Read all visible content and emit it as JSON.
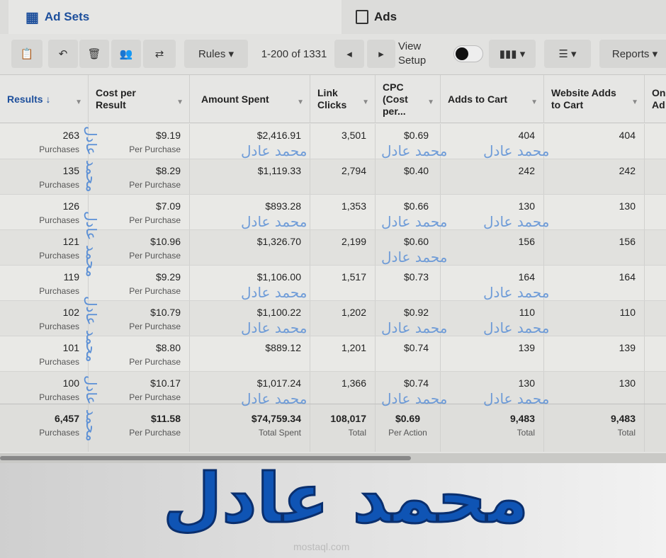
{
  "tabs": [
    {
      "label": "Ad Sets",
      "icon": "grid-icon",
      "active": true
    },
    {
      "label": "Ads",
      "icon": "ad-page-icon",
      "active": false
    }
  ],
  "toolbar": {
    "rules": "Rules",
    "pagination": "1-200 of 1331",
    "view_setup": "View Setup",
    "reports": "Reports"
  },
  "columns": [
    "Results ↓",
    "Cost per Result",
    "Amount Spent",
    "Link Clicks",
    "CPC (Cost per...",
    "Adds to Cart",
    "Website Adds to Cart",
    "On-Ad"
  ],
  "rows": [
    {
      "results": "263",
      "results_sub": "Purchases",
      "cpr": "$9.19",
      "cpr_sub": "Per Purchase",
      "spent": "$2,416.91",
      "clicks": "3,501",
      "cpc": "$0.69",
      "atc": "404",
      "watc": "404"
    },
    {
      "results": "135",
      "results_sub": "Purchases",
      "cpr": "$8.29",
      "cpr_sub": "Per Purchase",
      "spent": "$1,119.33",
      "clicks": "2,794",
      "cpc": "$0.40",
      "atc": "242",
      "watc": "242"
    },
    {
      "results": "126",
      "results_sub": "Purchases",
      "cpr": "$7.09",
      "cpr_sub": "Per Purchase",
      "spent": "$893.28",
      "clicks": "1,353",
      "cpc": "$0.66",
      "atc": "130",
      "watc": "130"
    },
    {
      "results": "121",
      "results_sub": "Purchases",
      "cpr": "$10.96",
      "cpr_sub": "Per Purchase",
      "spent": "$1,326.70",
      "clicks": "2,199",
      "cpc": "$0.60",
      "atc": "156",
      "watc": "156"
    },
    {
      "results": "119",
      "results_sub": "Purchases",
      "cpr": "$9.29",
      "cpr_sub": "Per Purchase",
      "spent": "$1,106.00",
      "clicks": "1,517",
      "cpc": "$0.73",
      "atc": "164",
      "watc": "164"
    },
    {
      "results": "102",
      "results_sub": "Purchases",
      "cpr": "$10.79",
      "cpr_sub": "Per Purchase",
      "spent": "$1,100.22",
      "clicks": "1,202",
      "cpc": "$0.92",
      "atc": "110",
      "watc": "110"
    },
    {
      "results": "101",
      "results_sub": "Purchases",
      "cpr": "$8.80",
      "cpr_sub": "Per Purchase",
      "spent": "$889.12",
      "clicks": "1,201",
      "cpc": "$0.74",
      "atc": "139",
      "watc": "139"
    },
    {
      "results": "100",
      "results_sub": "Purchases",
      "cpr": "$10.17",
      "cpr_sub": "Per Purchase",
      "spent": "$1,017.24",
      "clicks": "1,366",
      "cpc": "$0.74",
      "atc": "130",
      "watc": "130"
    }
  ],
  "totals": {
    "results": "6,457",
    "results_sub": "Purchases",
    "cpr": "$11.58",
    "cpr_sub": "Per Purchase",
    "spent": "$74,759.34",
    "spent_sub": "Total Spent",
    "clicks": "108,017",
    "clicks_sub": "Total",
    "cpc": "$0.69",
    "cpc_sub": "Per Action",
    "atc": "9,483",
    "atc_sub": "Total",
    "watc": "9,483",
    "watc_sub": "Total"
  },
  "watermark": {
    "name": "محمد عادل",
    "site": "mostaql.com"
  },
  "colors": {
    "accent": "#1d4f9c",
    "banner_text": "#0f54b4"
  }
}
